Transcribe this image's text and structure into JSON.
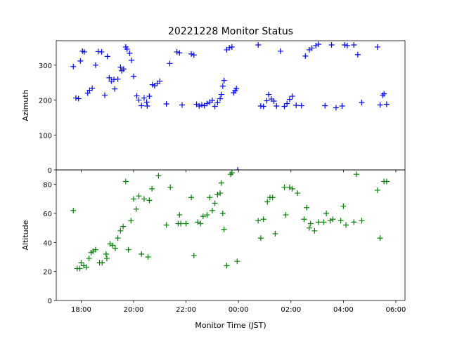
{
  "chart_data": [
    {
      "type": "scatter",
      "title": "20221228 Monitor Status",
      "xlabel": "",
      "ylabel": "Azimuth",
      "xlim_hours": [
        17.05,
        30.35
      ],
      "ylim": [
        0,
        370
      ],
      "yticks": [
        0,
        100,
        200,
        300
      ],
      "xtick_labels_shown": false,
      "marker": "+",
      "color": "#0000ff",
      "grid": false,
      "series": [
        {
          "points": [
            [
              17.7,
              296
            ],
            [
              17.8,
              206
            ],
            [
              17.9,
              204
            ],
            [
              17.97,
              312
            ],
            [
              18.05,
              340
            ],
            [
              18.12,
              338
            ],
            [
              18.25,
              220
            ],
            [
              18.32,
              228
            ],
            [
              18.42,
              234
            ],
            [
              18.55,
              300
            ],
            [
              18.65,
              339
            ],
            [
              18.78,
              338
            ],
            [
              18.9,
              214
            ],
            [
              19.0,
              325
            ],
            [
              19.07,
              264
            ],
            [
              19.15,
              254
            ],
            [
              19.25,
              259
            ],
            [
              19.28,
              232
            ],
            [
              19.4,
              260
            ],
            [
              19.5,
              294
            ],
            [
              19.55,
              284
            ],
            [
              19.62,
              289
            ],
            [
              19.7,
              352
            ],
            [
              19.75,
              346
            ],
            [
              19.85,
              334
            ],
            [
              19.92,
              314
            ],
            [
              20.0,
              268
            ],
            [
              20.12,
              212
            ],
            [
              20.2,
              200
            ],
            [
              20.3,
              184
            ],
            [
              20.4,
              206
            ],
            [
              20.5,
              194
            ],
            [
              20.52,
              183
            ],
            [
              20.6,
              211
            ],
            [
              20.72,
              244
            ],
            [
              20.8,
              241
            ],
            [
              20.9,
              248
            ],
            [
              21.0,
              254
            ],
            [
              21.25,
              189
            ],
            [
              21.38,
              305
            ],
            [
              21.65,
              338
            ],
            [
              21.75,
              335
            ],
            [
              21.85,
              186
            ],
            [
              22.2,
              332
            ],
            [
              22.3,
              329
            ],
            [
              22.4,
              188
            ],
            [
              22.5,
              183
            ],
            [
              22.6,
              186
            ],
            [
              22.7,
              184
            ],
            [
              22.8,
              190
            ],
            [
              22.9,
              194
            ],
            [
              23.0,
              199
            ],
            [
              23.1,
              182
            ],
            [
              23.2,
              193
            ],
            [
              23.3,
              204
            ],
            [
              23.35,
              216
            ],
            [
              23.4,
              240
            ],
            [
              23.45,
              256
            ],
            [
              23.55,
              344
            ],
            [
              23.65,
              350
            ],
            [
              23.75,
              352
            ],
            [
              23.82,
              221
            ],
            [
              23.87,
              227
            ],
            [
              23.92,
              233
            ],
            [
              23.97,
              0
            ],
            [
              24.75,
              358
            ],
            [
              24.85,
              183
            ],
            [
              24.95,
              182
            ],
            [
              25.08,
              198
            ],
            [
              25.15,
              216
            ],
            [
              25.25,
              203
            ],
            [
              25.35,
              197
            ],
            [
              25.45,
              183
            ],
            [
              25.6,
              340
            ],
            [
              25.75,
              182
            ],
            [
              25.85,
              190
            ],
            [
              25.95,
              202
            ],
            [
              26.05,
              211
            ],
            [
              26.2,
              185
            ],
            [
              26.4,
              184
            ],
            [
              26.55,
              326
            ],
            [
              26.7,
              344
            ],
            [
              26.8,
              349
            ],
            [
              26.95,
              356
            ],
            [
              27.05,
              360
            ],
            [
              27.3,
              184
            ],
            [
              27.55,
              358
            ],
            [
              27.72,
              178
            ],
            [
              27.95,
              183
            ],
            [
              28.05,
              358
            ],
            [
              28.15,
              356
            ],
            [
              28.4,
              358
            ],
            [
              28.55,
              330
            ],
            [
              28.7,
              193
            ],
            [
              29.3,
              352
            ],
            [
              29.4,
              186
            ],
            [
              29.5,
              214
            ],
            [
              29.55,
              218
            ],
            [
              29.65,
              188
            ]
          ]
        }
      ]
    },
    {
      "type": "scatter",
      "title": "",
      "xlabel": "Monitor Time (JST)",
      "ylabel": "Altitude",
      "xlim_hours": [
        17.05,
        30.35
      ],
      "ylim": [
        0,
        90
      ],
      "yticks": [
        0,
        20,
        40,
        60,
        80
      ],
      "xticks_hours": [
        18,
        20,
        22,
        24,
        26,
        28,
        30
      ],
      "xtick_labels": [
        "18:00",
        "20:00",
        "22:00",
        "00:00",
        "02:00",
        "04:00",
        "06:00"
      ],
      "marker": "+",
      "color": "#008000",
      "grid": false,
      "series": [
        {
          "points": [
            [
              17.7,
              62
            ],
            [
              17.85,
              22
            ],
            [
              17.95,
              22
            ],
            [
              18.0,
              26
            ],
            [
              18.1,
              24
            ],
            [
              18.2,
              23
            ],
            [
              18.3,
              29
            ],
            [
              18.38,
              33
            ],
            [
              18.45,
              34
            ],
            [
              18.55,
              35
            ],
            [
              18.7,
              26
            ],
            [
              18.8,
              26
            ],
            [
              18.95,
              32
            ],
            [
              18.98,
              29
            ],
            [
              19.1,
              39
            ],
            [
              19.2,
              38
            ],
            [
              19.3,
              36
            ],
            [
              19.4,
              43
            ],
            [
              19.5,
              48
            ],
            [
              19.6,
              51
            ],
            [
              19.7,
              82
            ],
            [
              19.8,
              35
            ],
            [
              19.9,
              55
            ],
            [
              20.0,
              70
            ],
            [
              20.1,
              63
            ],
            [
              20.2,
              72
            ],
            [
              20.3,
              32
            ],
            [
              20.4,
              70
            ],
            [
              20.55,
              30
            ],
            [
              20.6,
              69
            ],
            [
              20.7,
              77
            ],
            [
              20.95,
              86
            ],
            [
              21.25,
              52
            ],
            [
              21.4,
              78
            ],
            [
              21.7,
              53
            ],
            [
              21.75,
              59
            ],
            [
              21.8,
              53
            ],
            [
              22.0,
              53
            ],
            [
              22.2,
              71
            ],
            [
              22.3,
              31
            ],
            [
              22.45,
              54
            ],
            [
              22.55,
              53
            ],
            [
              22.65,
              58
            ],
            [
              22.8,
              59
            ],
            [
              22.9,
              71
            ],
            [
              23.0,
              62
            ],
            [
              23.1,
              67
            ],
            [
              23.2,
              73
            ],
            [
              23.3,
              74
            ],
            [
              23.35,
              81
            ],
            [
              23.45,
              49
            ],
            [
              23.4,
              60
            ],
            [
              23.55,
              24
            ],
            [
              23.7,
              87
            ],
            [
              23.75,
              88
            ],
            [
              23.95,
              27
            ],
            [
              24.75,
              55
            ],
            [
              24.85,
              43
            ],
            [
              24.95,
              56
            ],
            [
              25.1,
              68
            ],
            [
              25.2,
              71
            ],
            [
              25.3,
              71
            ],
            [
              25.4,
              46
            ],
            [
              25.75,
              78
            ],
            [
              25.8,
              59
            ],
            [
              25.95,
              78
            ],
            [
              26.05,
              77
            ],
            [
              26.25,
              74
            ],
            [
              26.5,
              56
            ],
            [
              26.6,
              64
            ],
            [
              26.7,
              50
            ],
            [
              26.75,
              53
            ],
            [
              26.9,
              48
            ],
            [
              27.05,
              54
            ],
            [
              27.25,
              54
            ],
            [
              27.35,
              60
            ],
            [
              27.5,
              55
            ],
            [
              27.6,
              56
            ],
            [
              27.9,
              55
            ],
            [
              28.0,
              65
            ],
            [
              28.1,
              52
            ],
            [
              28.4,
              54
            ],
            [
              28.5,
              87
            ],
            [
              28.7,
              55
            ],
            [
              29.3,
              76
            ],
            [
              29.4,
              43
            ],
            [
              29.55,
              82
            ],
            [
              29.65,
              82
            ]
          ]
        }
      ]
    }
  ]
}
